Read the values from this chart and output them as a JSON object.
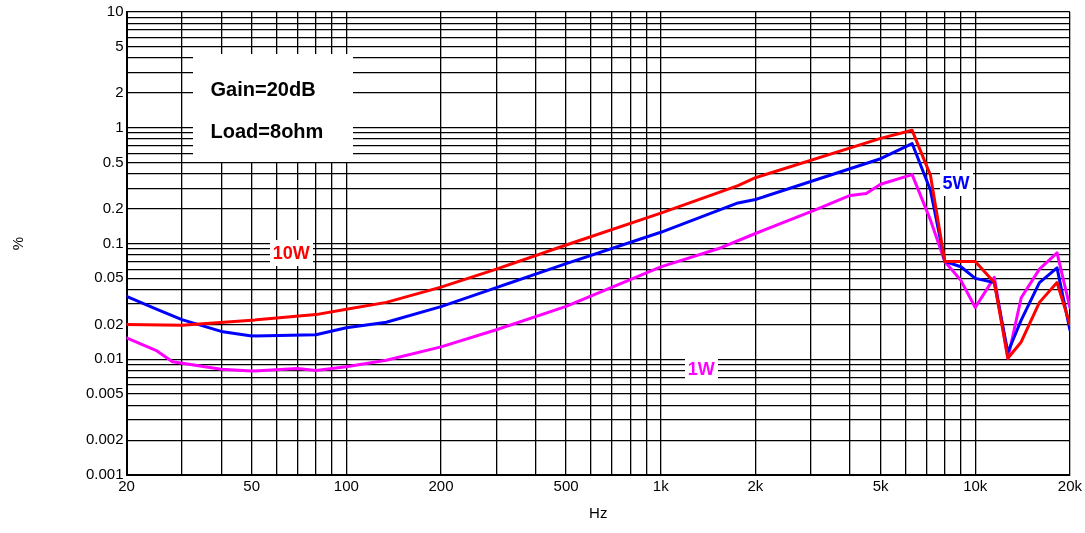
{
  "chart_data": {
    "type": "line",
    "xlabel": "Hz",
    "ylabel": "%",
    "log": "xy",
    "grid": true,
    "legend": false,
    "marker": "none",
    "line_style": "solid",
    "annotations": [
      "Gain=20dB",
      "Load=8ohm"
    ],
    "xlim": [
      20,
      20000
    ],
    "ylim": [
      0.001,
      10
    ],
    "xticks": [
      20,
      {
        "value": 30,
        "label": null
      },
      {
        "value": 40,
        "label": null
      },
      50,
      {
        "value": 60,
        "label": null
      },
      {
        "value": 70,
        "label": null
      },
      {
        "value": 80,
        "label": null
      },
      {
        "value": 90,
        "label": null
      },
      100,
      200,
      {
        "value": 300,
        "label": null
      },
      {
        "value": 400,
        "label": null
      },
      500,
      {
        "value": 600,
        "label": null
      },
      {
        "value": 700,
        "label": null
      },
      {
        "value": 800,
        "label": null
      },
      {
        "value": 900,
        "label": null
      },
      {
        "value": 1000,
        "label": "1k"
      },
      {
        "value": 2000,
        "label": "2k"
      },
      {
        "value": 3000,
        "label": null
      },
      {
        "value": 4000,
        "label": null
      },
      {
        "value": 5000,
        "label": "5k"
      },
      {
        "value": 6000,
        "label": null
      },
      {
        "value": 7000,
        "label": null
      },
      {
        "value": 8000,
        "label": null
      },
      {
        "value": 9000,
        "label": null
      },
      {
        "value": 10000,
        "label": "10k"
      },
      {
        "value": 20000,
        "label": "20k"
      }
    ],
    "yticks": [
      0.001,
      0.002,
      {
        "value": 0.003,
        "label": null
      },
      {
        "value": 0.004,
        "label": null
      },
      0.005,
      {
        "value": 0.006,
        "label": null
      },
      {
        "value": 0.007,
        "label": null
      },
      {
        "value": 0.008,
        "label": null
      },
      {
        "value": 0.009,
        "label": null
      },
      0.01,
      0.02,
      {
        "value": 0.03,
        "label": null
      },
      {
        "value": 0.04,
        "label": null
      },
      0.05,
      {
        "value": 0.06,
        "label": null
      },
      {
        "value": 0.07,
        "label": null
      },
      {
        "value": 0.08,
        "label": null
      },
      {
        "value": 0.09,
        "label": null
      },
      0.1,
      0.2,
      {
        "value": 0.3,
        "label": null
      },
      {
        "value": 0.4,
        "label": null
      },
      0.5,
      {
        "value": 0.6,
        "label": null
      },
      {
        "value": 0.7,
        "label": null
      },
      {
        "value": 0.8,
        "label": null
      },
      {
        "value": 0.9,
        "label": null
      },
      1,
      2,
      {
        "value": 3,
        "label": null
      },
      {
        "value": 4,
        "label": null
      },
      5,
      {
        "value": 6,
        "label": null
      },
      {
        "value": 7,
        "label": null
      },
      {
        "value": 8,
        "label": null
      },
      {
        "value": 9,
        "label": null
      },
      10
    ],
    "series": [
      {
        "name": "10W",
        "color": "#ff0000",
        "x": [
          20,
          30,
          50,
          80,
          100,
          134,
          200,
          300,
          500,
          1000,
          1760,
          2000,
          5000,
          6300,
          7200,
          8000,
          10000,
          11500,
          12700,
          14000,
          16000,
          18200,
          20000
        ],
        "values": [
          0.02,
          0.0197,
          0.0217,
          0.0243,
          0.027,
          0.031,
          0.042,
          0.06,
          0.097,
          0.183,
          0.316,
          0.37,
          0.81,
          0.95,
          0.39,
          0.07,
          0.07,
          0.046,
          0.0102,
          0.0141,
          0.031,
          0.046,
          0.02
        ]
      },
      {
        "name": "5W",
        "color": "#0000ff",
        "x": [
          20,
          25,
          30,
          40,
          50,
          80,
          100,
          134,
          200,
          300,
          500,
          1000,
          1760,
          2000,
          5000,
          6300,
          7200,
          8000,
          9000,
          10000,
          11500,
          12700,
          14000,
          16000,
          18200,
          20000
        ],
        "values": [
          0.035,
          0.027,
          0.022,
          0.0174,
          0.0159,
          0.0163,
          0.0187,
          0.0209,
          0.0285,
          0.0416,
          0.067,
          0.125,
          0.224,
          0.24,
          0.54,
          0.73,
          0.29,
          0.07,
          0.063,
          0.05,
          0.046,
          0.0115,
          0.0218,
          0.046,
          0.0616,
          0.0179
        ]
      },
      {
        "name": "1W",
        "color": "#ff00ff",
        "x": [
          20,
          25,
          28,
          40,
          50,
          70,
          80,
          100,
          134,
          200,
          300,
          500,
          1000,
          1520,
          2000,
          3100,
          4000,
          4500,
          5000,
          6300,
          7200,
          8000,
          9000,
          10000,
          11500,
          12700,
          14000,
          16000,
          18200,
          20000
        ],
        "values": [
          0.0153,
          0.0118,
          0.0095,
          0.0082,
          0.0079,
          0.0083,
          0.008,
          0.0086,
          0.0098,
          0.0128,
          0.018,
          0.0286,
          0.0628,
          0.09,
          0.122,
          0.195,
          0.26,
          0.27,
          0.325,
          0.394,
          0.16,
          0.07,
          0.048,
          0.028,
          0.051,
          0.0102,
          0.034,
          0.06,
          0.083,
          0.028
        ]
      }
    ]
  }
}
